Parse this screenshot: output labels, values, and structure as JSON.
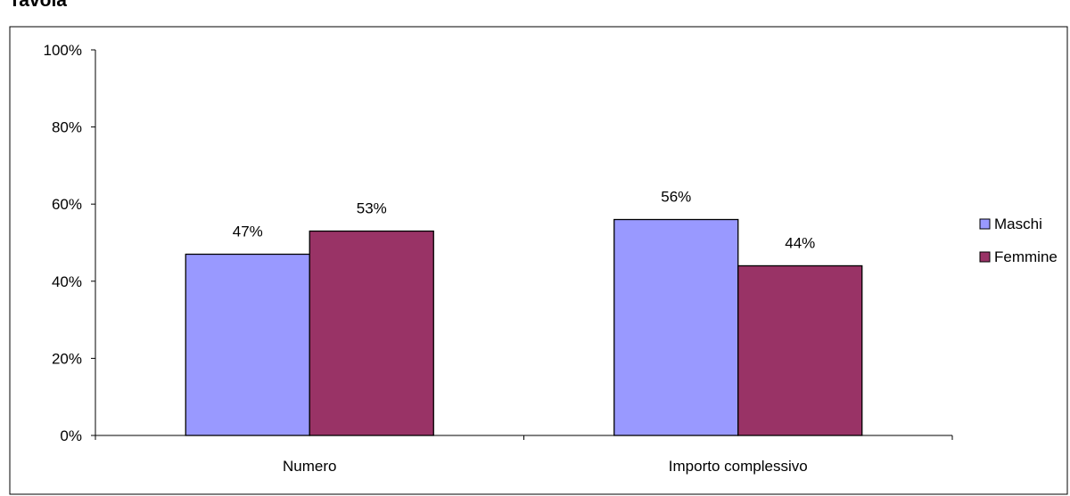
{
  "chart_data": {
    "type": "bar",
    "title": "",
    "title_visible_fragment": "Tavola",
    "xlabel": "",
    "ylabel": "",
    "categories": [
      "Numero",
      "Importo complessivo"
    ],
    "series": [
      {
        "name": "Maschi",
        "values": [
          47,
          56
        ],
        "labels": [
          "47%",
          "56%"
        ],
        "color": "#9999ff"
      },
      {
        "name": "Femmine",
        "values": [
          53,
          44
        ],
        "labels": [
          "53%",
          "44%"
        ],
        "color": "#993366"
      }
    ],
    "ylim": [
      0,
      100
    ],
    "yticks": [
      0,
      20,
      40,
      60,
      80,
      100
    ],
    "ytick_labels": [
      "0%",
      "20%",
      "40%",
      "60%",
      "80%",
      "100%"
    ],
    "grid": false,
    "legend_position": "right"
  }
}
